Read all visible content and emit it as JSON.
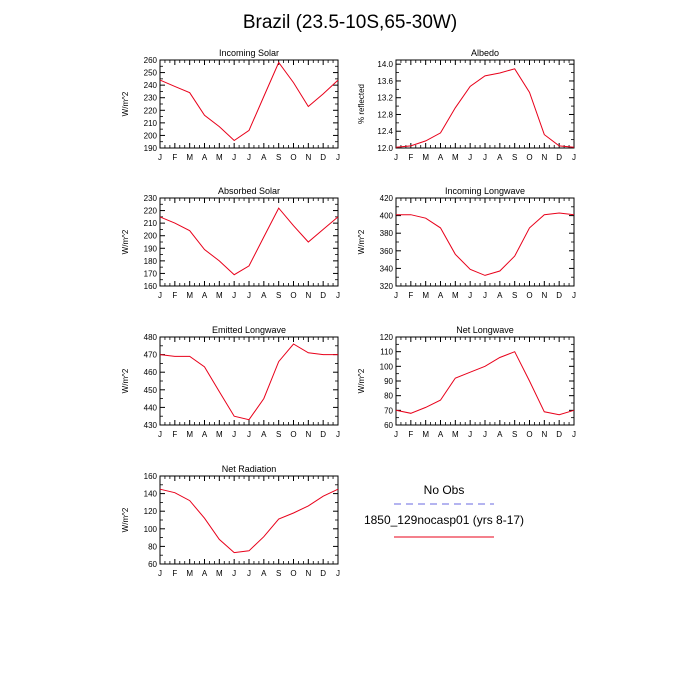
{
  "title": "Brazil (23.5-10S,65-30W)",
  "legend": {
    "entries": [
      {
        "label": "No Obs",
        "color": "#6a6ae0",
        "dash": true
      },
      {
        "label": "1850_129nocasp01 (yrs 8-17)",
        "color": "#e8001a",
        "dash": false
      }
    ]
  },
  "chart_data": [
    {
      "type": "line",
      "title": "Incoming Solar",
      "ylabel": "W/m^2",
      "categories": [
        "J",
        "F",
        "M",
        "A",
        "M",
        "J",
        "J",
        "A",
        "S",
        "O",
        "N",
        "D",
        "J"
      ],
      "ylim": [
        190,
        260
      ],
      "yticks": [
        190,
        200,
        210,
        220,
        230,
        240,
        250,
        260
      ],
      "ytick_labels": [
        "190",
        "200",
        "210",
        "220",
        "230",
        "240",
        "250",
        "260"
      ],
      "series": [
        {
          "values": [
            244,
            239,
            234,
            216,
            207,
            196,
            204,
            231,
            258,
            242,
            223,
            233,
            244
          ]
        }
      ]
    },
    {
      "type": "line",
      "title": "Albedo",
      "ylabel": "% reflected",
      "categories": [
        "J",
        "F",
        "M",
        "A",
        "M",
        "J",
        "J",
        "A",
        "S",
        "O",
        "N",
        "D",
        "J"
      ],
      "ylim": [
        12.0,
        14.1
      ],
      "yticks": [
        12.0,
        12.4,
        12.8,
        13.2,
        13.6,
        14.0
      ],
      "ytick_labels": [
        "12.0",
        "12.4",
        "12.8",
        "13.2",
        "13.6",
        "14.0"
      ],
      "series": [
        {
          "values": [
            12.02,
            12.05,
            12.17,
            12.36,
            12.96,
            13.47,
            13.72,
            13.79,
            13.89,
            13.33,
            12.32,
            12.05,
            12.02
          ]
        }
      ]
    },
    {
      "type": "line",
      "title": "Absorbed Solar",
      "ylabel": "W/m^2",
      "categories": [
        "J",
        "F",
        "M",
        "A",
        "M",
        "J",
        "J",
        "A",
        "S",
        "O",
        "N",
        "D",
        "J"
      ],
      "ylim": [
        160,
        230
      ],
      "yticks": [
        160,
        170,
        180,
        190,
        200,
        210,
        220,
        230
      ],
      "ytick_labels": [
        "160",
        "170",
        "180",
        "190",
        "200",
        "210",
        "220",
        "230"
      ],
      "series": [
        {
          "values": [
            215,
            210,
            204,
            189,
            180,
            169,
            176,
            199,
            222,
            208,
            195,
            205,
            215
          ]
        }
      ]
    },
    {
      "type": "line",
      "title": "Incoming Longwave",
      "ylabel": "W/m^2",
      "categories": [
        "J",
        "F",
        "M",
        "A",
        "M",
        "J",
        "J",
        "A",
        "S",
        "O",
        "N",
        "D",
        "J"
      ],
      "ylim": [
        320,
        420
      ],
      "yticks": [
        320,
        340,
        360,
        380,
        400,
        420
      ],
      "ytick_labels": [
        "320",
        "340",
        "360",
        "380",
        "400",
        "420"
      ],
      "series": [
        {
          "values": [
            401,
            401,
            397,
            386,
            356,
            339,
            332,
            337,
            354,
            386,
            401,
            403,
            401
          ]
        }
      ]
    },
    {
      "type": "line",
      "title": "Emitted Longwave",
      "ylabel": "W/m^2",
      "categories": [
        "J",
        "F",
        "M",
        "A",
        "M",
        "J",
        "J",
        "A",
        "S",
        "O",
        "N",
        "D",
        "J"
      ],
      "ylim": [
        430,
        480
      ],
      "yticks": [
        430,
        440,
        450,
        460,
        470,
        480
      ],
      "ytick_labels": [
        "430",
        "440",
        "450",
        "460",
        "470",
        "480"
      ],
      "series": [
        {
          "values": [
            470,
            469,
            469,
            463,
            449,
            435,
            433,
            445,
            466,
            476,
            471,
            470,
            470
          ]
        }
      ]
    },
    {
      "type": "line",
      "title": "Net Longwave",
      "ylabel": "W/m^2",
      "categories": [
        "J",
        "F",
        "M",
        "A",
        "M",
        "J",
        "J",
        "A",
        "S",
        "O",
        "N",
        "D",
        "J"
      ],
      "ylim": [
        60,
        120
      ],
      "yticks": [
        60,
        70,
        80,
        90,
        100,
        110,
        120
      ],
      "ytick_labels": [
        "60",
        "70",
        "80",
        "90",
        "100",
        "110",
        "120"
      ],
      "series": [
        {
          "values": [
            70,
            68,
            72,
            77,
            92,
            96,
            100,
            106,
            110,
            90,
            69,
            67,
            70
          ]
        }
      ]
    },
    {
      "type": "line",
      "title": "Net Radiation",
      "ylabel": "W/m^2",
      "categories": [
        "J",
        "F",
        "M",
        "A",
        "M",
        "J",
        "J",
        "A",
        "S",
        "O",
        "N",
        "D",
        "J"
      ],
      "ylim": [
        60,
        160
      ],
      "yticks": [
        60,
        80,
        100,
        120,
        140,
        160
      ],
      "ytick_labels": [
        "60",
        "80",
        "100",
        "120",
        "140",
        "160"
      ],
      "series": [
        {
          "values": [
            145,
            141,
            132,
            112,
            88,
            73,
            75,
            91,
            111,
            118,
            126,
            137,
            145
          ]
        }
      ]
    }
  ]
}
